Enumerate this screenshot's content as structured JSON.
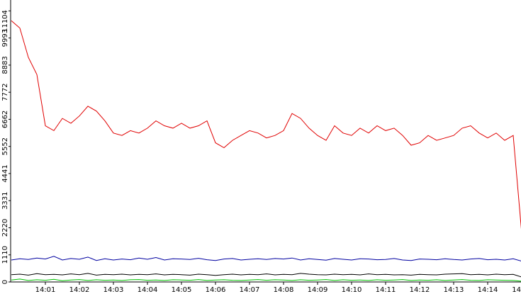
{
  "chart_data": {
    "type": "line",
    "x": [
      0,
      0.25,
      0.5,
      0.75,
      1,
      1.25,
      1.5,
      1.75,
      2,
      2.25,
      2.5,
      2.75,
      3,
      3.25,
      3.5,
      3.75,
      4,
      4.25,
      4.5,
      4.75,
      5,
      5.25,
      5.5,
      5.75,
      6,
      6.25,
      6.5,
      6.75,
      7,
      7.25,
      7.5,
      7.75,
      8,
      8.25,
      8.5,
      8.75,
      9,
      9.25,
      9.5,
      9.75,
      10,
      10.25,
      10.5,
      10.75,
      11,
      11.25,
      11.5,
      11.75,
      12,
      12.25,
      12.5,
      12.75,
      13,
      13.25,
      13.5,
      13.75,
      14,
      14.25,
      14.5,
      14.75,
      15
    ],
    "series": [
      {
        "color": "#e00000",
        "values": [
          10700,
          10400,
          9200,
          8500,
          6400,
          6200,
          6700,
          6500,
          6800,
          7200,
          7000,
          6600,
          6100,
          6000,
          6200,
          6100,
          6300,
          6600,
          6400,
          6300,
          6500,
          6300,
          6400,
          6600,
          5700,
          5500,
          5800,
          6000,
          6200,
          6100,
          5900,
          6000,
          6200,
          6900,
          6700,
          6300,
          6000,
          5800,
          6400,
          6100,
          6000,
          6300,
          6100,
          6400,
          6200,
          6300,
          6000,
          5600,
          5700,
          6000,
          5800,
          5900,
          6000,
          6300,
          6400,
          6100,
          5900,
          6100,
          5800,
          6000,
          2000
        ]
      },
      {
        "color": "#0000a0",
        "values": [
          900,
          950,
          920,
          980,
          940,
          1050,
          900,
          960,
          930,
          1020,
          880,
          950,
          900,
          940,
          910,
          980,
          930,
          1000,
          900,
          950,
          940,
          920,
          970,
          910,
          880,
          940,
          960,
          900,
          930,
          950,
          920,
          960,
          940,
          980,
          900,
          950,
          920,
          890,
          960,
          930,
          900,
          950,
          940,
          910,
          920,
          960,
          900,
          880,
          940,
          930,
          910,
          950,
          920,
          900,
          940,
          960,
          910,
          930,
          900,
          950,
          850
        ]
      },
      {
        "color": "#000000",
        "values": [
          300,
          320,
          280,
          340,
          300,
          310,
          290,
          330,
          300,
          350,
          280,
          310,
          300,
          320,
          290,
          310,
          300,
          330,
          290,
          310,
          300,
          280,
          320,
          300,
          270,
          300,
          320,
          290,
          310,
          300,
          330,
          290,
          310,
          300,
          350,
          320,
          300,
          290,
          320,
          300,
          310,
          290,
          330,
          300,
          310,
          290,
          300,
          280,
          310,
          300,
          290,
          320,
          330,
          340,
          300,
          310,
          290,
          320,
          300,
          310,
          200
        ]
      },
      {
        "color": "#00c000",
        "values": [
          80,
          120,
          60,
          90,
          70,
          110,
          50,
          80,
          100,
          60,
          90,
          70,
          80,
          60,
          90,
          100,
          70,
          80,
          60,
          90,
          80,
          70,
          100,
          60,
          80,
          90,
          70,
          60,
          80,
          100,
          70,
          90,
          80,
          60,
          90,
          70,
          80,
          100,
          60,
          90,
          70,
          80,
          60,
          90,
          70,
          80,
          100,
          60,
          80,
          70,
          90,
          60,
          80,
          100,
          70,
          60,
          90,
          80,
          70,
          60,
          30
        ]
      }
    ],
    "xlim": [
      0,
      15
    ],
    "xticks": [
      {
        "value": 1,
        "label": "14:01"
      },
      {
        "value": 2,
        "label": "14:02"
      },
      {
        "value": 3,
        "label": "14:03"
      },
      {
        "value": 4,
        "label": "14:04"
      },
      {
        "value": 5,
        "label": "14:05"
      },
      {
        "value": 6,
        "label": "14:06"
      },
      {
        "value": 7,
        "label": "14:07"
      },
      {
        "value": 8,
        "label": "14:08"
      },
      {
        "value": 9,
        "label": "14:09"
      },
      {
        "value": 10,
        "label": "14:10"
      },
      {
        "value": 11,
        "label": "14:11"
      },
      {
        "value": 12,
        "label": "14:12"
      },
      {
        "value": 13,
        "label": "14:13"
      },
      {
        "value": 14,
        "label": "14:14"
      },
      {
        "value": 15,
        "label": "14"
      }
    ],
    "ylim": [
      0,
      11550
    ],
    "yticks": [
      0,
      1110,
      2220,
      3331,
      4441,
      5552,
      6662,
      7772,
      8883,
      9993,
      11104
    ]
  }
}
